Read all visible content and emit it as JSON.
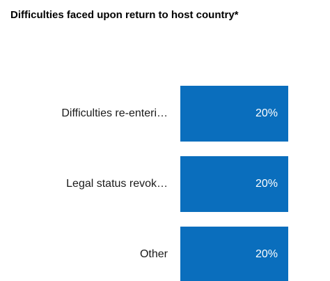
{
  "chart_data": {
    "type": "bar",
    "orientation": "horizontal",
    "title": "Difficulties faced upon return to host country*",
    "categories": [
      "Difficulties re-enteri…",
      "Legal status revok…",
      "Other"
    ],
    "values": [
      20,
      20,
      20
    ],
    "value_labels": [
      "20%",
      "20%",
      "20%"
    ],
    "xlim": [
      0,
      20
    ],
    "grid": false,
    "bar_color": "#0a6ebd",
    "value_label_color": "#ffffff"
  }
}
